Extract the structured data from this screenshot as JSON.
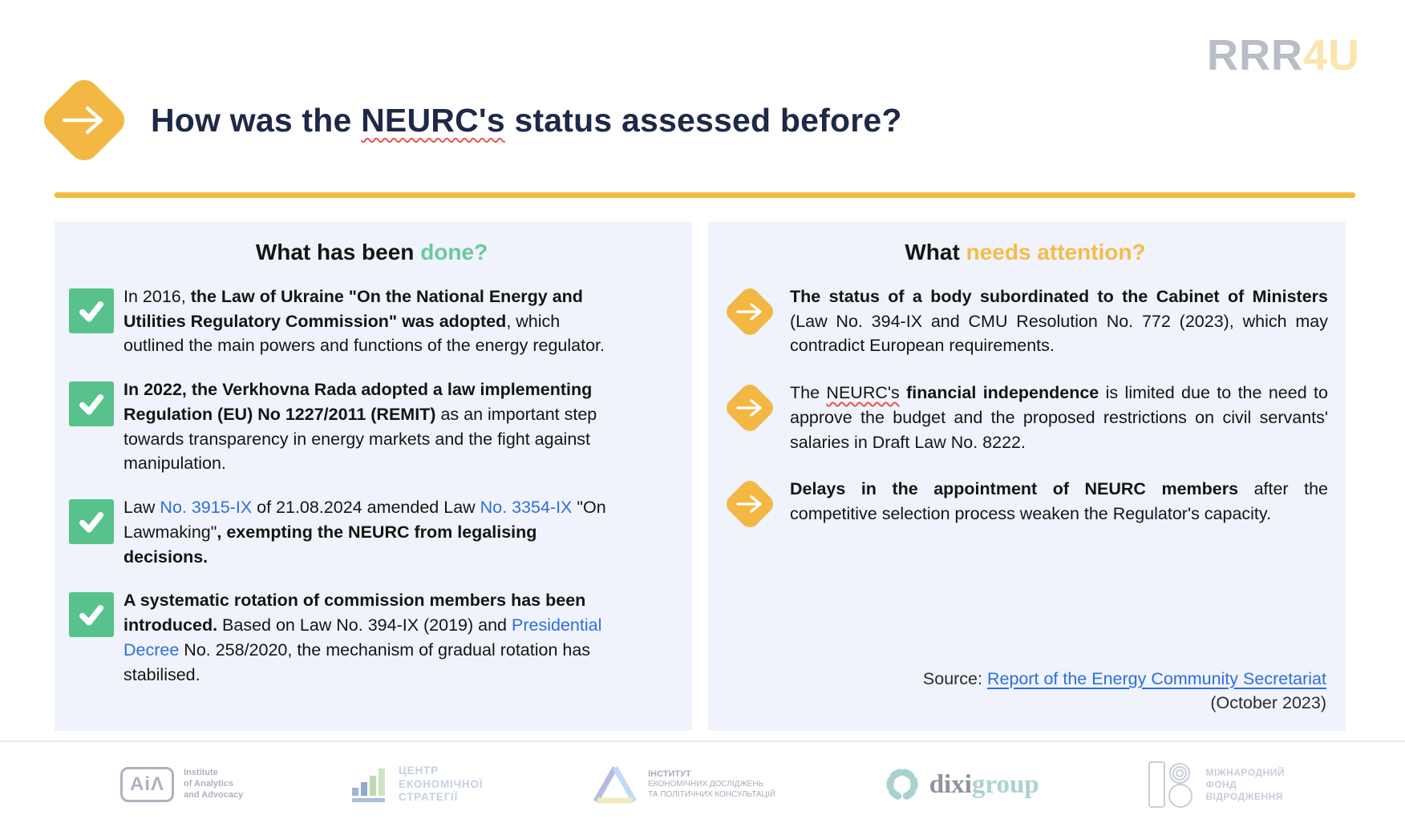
{
  "colors": {
    "accent_yellow": "#F2B843",
    "rule_yellow": "#F2BA41",
    "check_green": "#57C28C",
    "heading_green": "#6CC99A",
    "heading_yellow": "#F5BC4A",
    "link_blue": "#2E6FD8",
    "title_navy": "#1D2946",
    "panel_bg": "#F0F3FB",
    "squiggle_red": "#E4584A"
  },
  "brand": {
    "gray": "RRR",
    "accent": "4U"
  },
  "title_segments": [
    {
      "t": "How was the ",
      "s": "n"
    },
    {
      "t": "NEURC's",
      "s": "sq"
    },
    {
      "t": " status assessed before?",
      "s": "n"
    }
  ],
  "left_panel": {
    "heading": {
      "plain": "What has been ",
      "accent": "done?"
    },
    "items": [
      {
        "segments": [
          {
            "t": "In 2016, ",
            "s": "n"
          },
          {
            "t": "the Law of Ukraine \"On the National Energy and Utilities Regulatory Commission\" was adopted",
            "s": "b"
          },
          {
            "t": ", which outlined the main powers and functions of the energy regulator.",
            "s": "n"
          }
        ]
      },
      {
        "segments": [
          {
            "t": "In 2022, the Verkhovna Rada adopted a law implementing Regulation (EU) No 1227/2011 (REMIT)",
            "s": "b"
          },
          {
            "t": " as an important step towards transparency in energy markets and the fight against manipulation.",
            "s": "n"
          }
        ]
      },
      {
        "segments": [
          {
            "t": "Law ",
            "s": "n"
          },
          {
            "t": "No. 3915-IX",
            "s": "l"
          },
          {
            "t": " of 21.08.2024 amended Law ",
            "s": "n"
          },
          {
            "t": "No. 3354-IX",
            "s": "l"
          },
          {
            "t": " \"On Lawmaking\"",
            "s": "n"
          },
          {
            "t": ", exempting the NEURC from legalising decisions.",
            "s": "b"
          }
        ]
      },
      {
        "segments": [
          {
            "t": "A systematic rotation of commission members has been introduced.",
            "s": "b"
          },
          {
            "t": " Based on Law No. 394-IX (2019) and ",
            "s": "n"
          },
          {
            "t": "Presidential Decree",
            "s": "l"
          },
          {
            "t": " No. 258/2020, the mechanism of gradual rotation has stabilised.",
            "s": "n"
          }
        ]
      }
    ]
  },
  "right_panel": {
    "heading": {
      "plain": "What ",
      "accent": "needs attention?"
    },
    "items": [
      {
        "segments": [
          {
            "t": "The status of a body subordinated to the Cabinet of Ministers",
            "s": "b"
          },
          {
            "t": " (Law No. 394-IX and CMU Resolution No. 772 (2023), which may contradict European requirements.",
            "s": "n"
          }
        ]
      },
      {
        "segments": [
          {
            "t": "The ",
            "s": "n"
          },
          {
            "t": "NEURC's",
            "s": "sq"
          },
          {
            "t": " ",
            "s": "n"
          },
          {
            "t": "financial independence",
            "s": "b"
          },
          {
            "t": " is limited due to the need to approve the budget and the proposed restrictions on civil servants' salaries in Draft Law No. 8222.",
            "s": "n"
          }
        ]
      },
      {
        "segments": [
          {
            "t": "Delays in the appointment of NEURC members",
            "s": "b"
          },
          {
            "t": " after the competitive selection process weaken the Regulator's capacity.",
            "s": "n"
          }
        ]
      }
    ],
    "source": {
      "label": "Source: ",
      "link": "Report of the Energy Community Secretariat",
      "date": "(October 2023)"
    }
  },
  "footer": {
    "aia": {
      "mark": "AiΛ",
      "lines": [
        "Institute",
        "of Analytics",
        "and Advocacy"
      ]
    },
    "ces": {
      "lines": [
        "ЦЕНТР",
        "ЕКОНОМІЧНОЇ",
        "СТРАТЕГІЇ"
      ]
    },
    "ier": {
      "lines": [
        "ІНСТИТУТ",
        "ЕКОНОМІЧНИХ ДОСЛІДЖЕНЬ",
        "ТА ПОЛІТИЧНИХ КОНСУЛЬТАЦІЙ"
      ]
    },
    "dixi": {
      "dark": "dixi",
      "accent": "group"
    },
    "irf": {
      "lines": [
        "МІЖНАРОДНИЙ",
        "ФОНД",
        "ВІДРОДЖЕННЯ"
      ]
    }
  }
}
